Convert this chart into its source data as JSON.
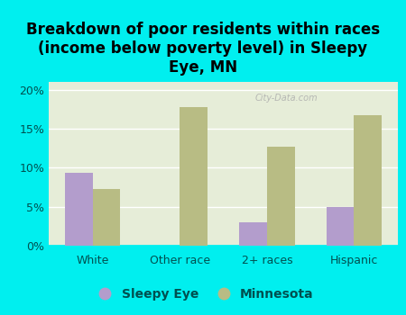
{
  "title": "Breakdown of poor residents within races\n(income below poverty level) in Sleepy\nEye, MN",
  "categories": [
    "White",
    "Other race",
    "2+ races",
    "Hispanic"
  ],
  "sleepy_eye_values": [
    9.3,
    0,
    3.0,
    5.0
  ],
  "minnesota_values": [
    7.3,
    17.8,
    12.7,
    16.7
  ],
  "sleepy_eye_color": "#b39dcc",
  "minnesota_color": "#b8bc84",
  "background_outer": "#00efef",
  "background_inner": "#e6edd8",
  "ylim": [
    0,
    21
  ],
  "yticks": [
    0,
    5,
    10,
    15,
    20
  ],
  "ytick_labels": [
    "0%",
    "5%",
    "10%",
    "15%",
    "20%"
  ],
  "bar_width": 0.32,
  "legend_labels": [
    "Sleepy Eye",
    "Minnesota"
  ],
  "watermark": "City-Data.com",
  "title_fontsize": 12,
  "tick_fontsize": 9,
  "legend_fontsize": 10,
  "title_color": "#000000",
  "tick_color": "#005050"
}
